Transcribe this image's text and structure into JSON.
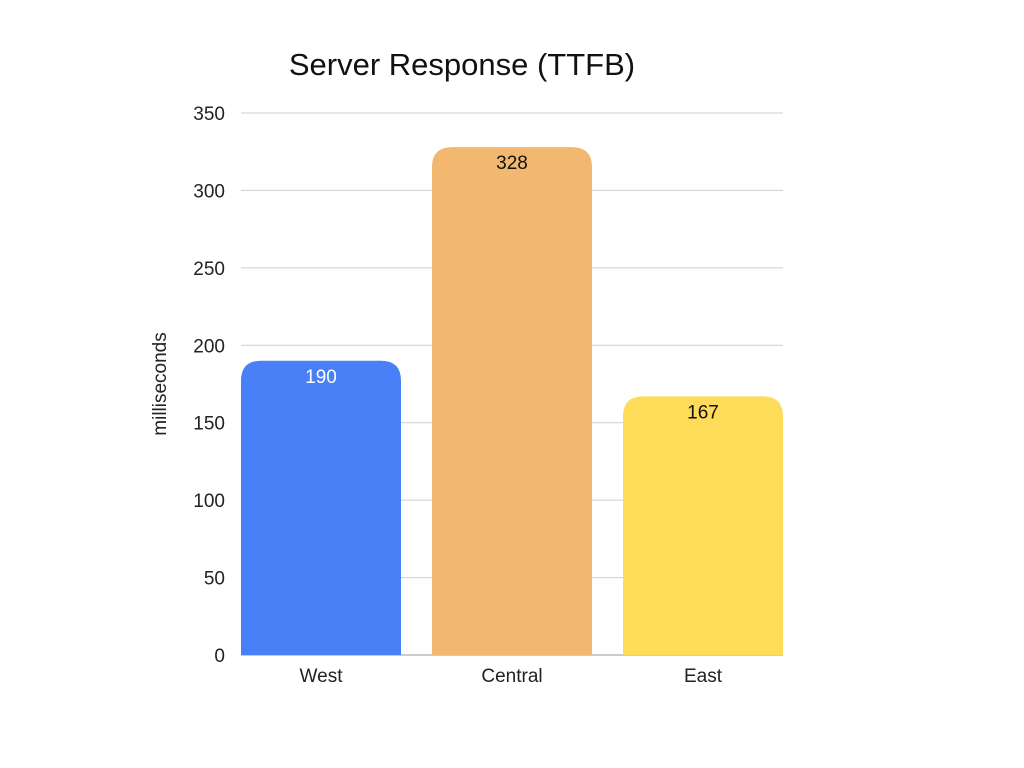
{
  "chart_data": {
    "type": "bar",
    "title": "Server Response (TTFB)",
    "xlabel": "",
    "ylabel": "milliseconds",
    "categories": [
      "West",
      "Central",
      "East"
    ],
    "values": [
      190,
      328,
      167
    ],
    "data_labels": [
      "190",
      "328",
      "167"
    ],
    "ylim": [
      0,
      350
    ],
    "yticks": [
      0,
      50,
      100,
      150,
      200,
      250,
      300,
      350
    ],
    "ytick_labels": [
      "0",
      "50",
      "100",
      "150",
      "200",
      "250",
      "300",
      "350"
    ],
    "grid": true,
    "legend": "none",
    "colors": [
      "#4A80F7",
      "#F2B86F",
      "#FEDC5A"
    ],
    "label_colors": [
      "#ffffff",
      "#111111",
      "#111111"
    ]
  }
}
